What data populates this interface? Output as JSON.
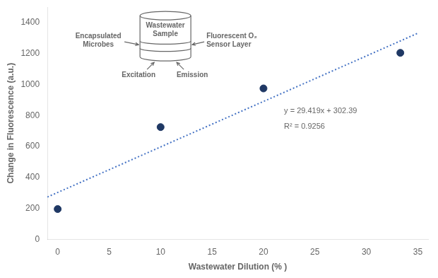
{
  "chart_data": {
    "type": "scatter",
    "xlabel": "Wastewater Dilution (% )",
    "ylabel": "Change in Fluorescence (a.u.)",
    "series": [
      {
        "color": "#1f3864",
        "marker": "circle",
        "x": [
          0,
          10,
          20,
          33.3
        ],
        "values": [
          195,
          725,
          975,
          1205
        ]
      },
      {
        "type": "line",
        "color": "#4472c4",
        "line_style": "dotted",
        "x": [
          -1.0,
          35.0
        ],
        "values": [
          272.971,
          1332.055
        ]
      }
    ],
    "annotations": [
      {
        "text": "y = 29.419x + 302.39",
        "x": 22,
        "y": 830
      },
      {
        "text": "R² = 0.9256",
        "x": 22,
        "y": 730
      },
      {
        "text": "Wastewater\nSample"
      },
      {
        "text": "Encapsulated\nMicrobes"
      },
      {
        "text": "Fluorescent O₂\nSensor Layer"
      },
      {
        "text": "Excitation"
      },
      {
        "text": "Emission"
      }
    ],
    "xlim": [
      -1,
      36
    ],
    "ylim": [
      0,
      1500
    ],
    "xticks": [
      0,
      5,
      10,
      15,
      20,
      25,
      30,
      35
    ],
    "yticks": [
      0,
      200,
      400,
      600,
      800,
      1000,
      1200,
      1400
    ],
    "grid": false
  }
}
